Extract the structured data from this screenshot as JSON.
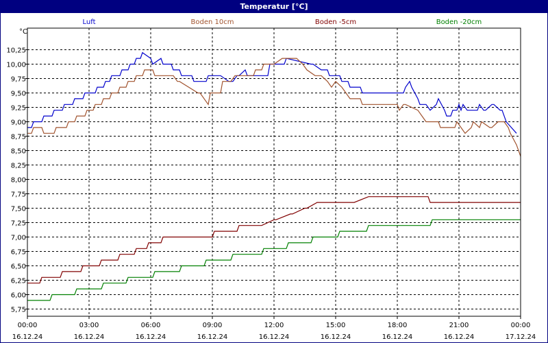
{
  "window_title": "Temperatur [°C]",
  "chart_data": {
    "type": "line",
    "title": "Temperatur [°C]",
    "ylabel": "°C",
    "ylim": [
      5.625,
      10.625
    ],
    "yticks": [
      "5,75",
      "6,00",
      "6,25",
      "6,50",
      "6,75",
      "7,00",
      "7,25",
      "7,50",
      "7,75",
      "8,00",
      "8,25",
      "8,50",
      "8,75",
      "9,00",
      "9,25",
      "9,50",
      "9,75",
      "10,00",
      "10,25"
    ],
    "ytick_values": [
      5.75,
      6.0,
      6.25,
      6.5,
      6.75,
      7.0,
      7.25,
      7.5,
      7.75,
      8.0,
      8.25,
      8.5,
      8.75,
      9.0,
      9.25,
      9.5,
      9.75,
      10.0,
      10.25
    ],
    "xlim": [
      0,
      24
    ],
    "xtick_hours": [
      0,
      3,
      6,
      9,
      12,
      15,
      18,
      21,
      24
    ],
    "xtick_times": [
      "00:00",
      "03:00",
      "06:00",
      "09:00",
      "12:00",
      "15:00",
      "18:00",
      "21:00",
      "00:00"
    ],
    "xtick_dates": [
      "16.12.24",
      "16.12.24",
      "16.12.24",
      "16.12.24",
      "16.12.24",
      "16.12.24",
      "16.12.24",
      "16.12.24",
      "17.12.24"
    ],
    "grid": true,
    "legend_position": "top",
    "series": [
      {
        "name": "Luft",
        "color": "#0000cc",
        "x": [
          0,
          0.2,
          0.3,
          0.7,
          0.8,
          1.2,
          1.3,
          1.7,
          1.8,
          2.2,
          2.3,
          2.7,
          2.8,
          3.3,
          3.4,
          3.7,
          3.8,
          4.0,
          4.1,
          4.5,
          4.6,
          4.9,
          5.0,
          5.2,
          5.3,
          5.5,
          5.6,
          6.0,
          6.1,
          6.5,
          6.6,
          7.0,
          7.1,
          7.4,
          7.5,
          8.0,
          8.1,
          8.7,
          8.8,
          9.3,
          9.4,
          9.8,
          10.0,
          10.2,
          10.3,
          10.6,
          10.7,
          11.2,
          11.3,
          11.7,
          11.8,
          12.5,
          12.6,
          13.8,
          13.9,
          14.3,
          14.4,
          14.6,
          14.7,
          15.2,
          15.3,
          15.6,
          15.7,
          16.2,
          16.3,
          16.9,
          17.0,
          18.3,
          18.4,
          18.6,
          18.7,
          19.0,
          19.1,
          19.4,
          19.6,
          19.9,
          20.0,
          20.3,
          20.4,
          20.6,
          20.7,
          20.9,
          21.0,
          21.1,
          21.2,
          21.4,
          21.5,
          21.9,
          22.0,
          22.2,
          22.3,
          22.6,
          22.7,
          23.0,
          23.1,
          23.3,
          23.8
        ],
        "y": [
          8.9,
          8.9,
          9.0,
          9.0,
          9.1,
          9.1,
          9.2,
          9.2,
          9.3,
          9.3,
          9.4,
          9.4,
          9.5,
          9.5,
          9.6,
          9.6,
          9.7,
          9.7,
          9.8,
          9.8,
          9.9,
          9.9,
          10.0,
          10.0,
          10.1,
          10.1,
          10.2,
          10.1,
          10.0,
          10.1,
          10.0,
          10.0,
          9.9,
          9.9,
          9.8,
          9.8,
          9.7,
          9.7,
          9.8,
          9.8,
          9.8,
          9.7,
          9.7,
          9.8,
          9.8,
          9.9,
          9.8,
          9.8,
          9.8,
          9.8,
          10.0,
          10.0,
          10.1,
          10.0,
          10.0,
          9.9,
          9.9,
          9.9,
          9.8,
          9.8,
          9.7,
          9.7,
          9.6,
          9.6,
          9.5,
          9.5,
          9.5,
          9.5,
          9.6,
          9.7,
          9.6,
          9.4,
          9.3,
          9.3,
          9.2,
          9.3,
          9.4,
          9.2,
          9.1,
          9.1,
          9.2,
          9.2,
          9.3,
          9.2,
          9.3,
          9.2,
          9.2,
          9.2,
          9.3,
          9.2,
          9.2,
          9.3,
          9.3,
          9.2,
          9.2,
          9.0,
          8.8
        ]
      },
      {
        "name": "Boden 10cm",
        "color": "#a0522d",
        "x": [
          0,
          0.2,
          0.3,
          0.7,
          0.8,
          1.3,
          1.4,
          1.9,
          2.0,
          2.3,
          2.4,
          2.8,
          2.9,
          3.2,
          3.3,
          3.6,
          3.7,
          4.0,
          4.1,
          4.4,
          4.5,
          4.8,
          4.9,
          5.2,
          5.3,
          5.6,
          5.7,
          6.1,
          6.2,
          7.0,
          7.1,
          7.3,
          7.4,
          8.3,
          8.4,
          8.8,
          8.9,
          9.4,
          9.5,
          9.9,
          10.1,
          10.3,
          10.4,
          11.0,
          11.1,
          11.4,
          11.5,
          11.8,
          12.0,
          12.4,
          12.5,
          13.0,
          13.1,
          13.4,
          13.6,
          14.0,
          14.3,
          14.6,
          14.8,
          15.0,
          15.3,
          15.5,
          15.7,
          16.2,
          16.3,
          17.1,
          17.2,
          18.0,
          18.1,
          18.3,
          18.4,
          19.0,
          19.2,
          19.4,
          19.5,
          20.0,
          20.1,
          20.8,
          20.9,
          21.1,
          21.3,
          21.6,
          21.7,
          22.0,
          22.1,
          22.5,
          22.6,
          22.9,
          23.2,
          23.4,
          23.5,
          23.8,
          24.0
        ],
        "y": [
          8.8,
          8.8,
          8.9,
          8.9,
          8.8,
          8.8,
          8.9,
          8.9,
          9.0,
          9.0,
          9.1,
          9.1,
          9.2,
          9.2,
          9.3,
          9.3,
          9.4,
          9.4,
          9.5,
          9.5,
          9.6,
          9.6,
          9.7,
          9.7,
          9.8,
          9.8,
          9.9,
          9.9,
          9.8,
          9.8,
          9.8,
          9.7,
          9.7,
          9.5,
          9.5,
          9.3,
          9.5,
          9.5,
          9.7,
          9.7,
          9.8,
          9.8,
          9.8,
          9.8,
          9.9,
          9.9,
          10.0,
          10.0,
          10.0,
          10.1,
          10.1,
          10.1,
          10.1,
          10.0,
          9.9,
          9.8,
          9.8,
          9.7,
          9.6,
          9.7,
          9.6,
          9.5,
          9.4,
          9.4,
          9.3,
          9.3,
          9.3,
          9.3,
          9.2,
          9.3,
          9.3,
          9.2,
          9.1,
          9.0,
          9.0,
          9.0,
          8.9,
          8.9,
          9.0,
          8.9,
          8.8,
          8.9,
          9.0,
          8.9,
          9.0,
          8.9,
          8.9,
          9.0,
          9.0,
          8.9,
          8.8,
          8.6,
          8.4
        ]
      },
      {
        "name": "Boden -5cm",
        "color": "#800000",
        "x": [
          0,
          0.6,
          0.7,
          1.6,
          1.7,
          2.6,
          2.7,
          3.5,
          3.6,
          4.4,
          4.5,
          5.2,
          5.3,
          5.8,
          5.9,
          6.5,
          6.6,
          7.2,
          7.3,
          8.0,
          8.1,
          9.0,
          9.1,
          10.2,
          10.3,
          11.3,
          11.4,
          12.0,
          12.1,
          12.8,
          12.9,
          13.5,
          13.6,
          14.1,
          14.2,
          15.8,
          15.9,
          16.6,
          16.7,
          19.5,
          19.6,
          24.0
        ],
        "y": [
          6.2,
          6.2,
          6.3,
          6.3,
          6.4,
          6.4,
          6.5,
          6.5,
          6.6,
          6.6,
          6.7,
          6.7,
          6.8,
          6.8,
          6.9,
          6.9,
          7.0,
          7.0,
          7.0,
          7.0,
          7.0,
          7.0,
          7.1,
          7.1,
          7.2,
          7.2,
          7.2,
          7.3,
          7.3,
          7.4,
          7.4,
          7.5,
          7.5,
          7.6,
          7.6,
          7.6,
          7.6,
          7.7,
          7.7,
          7.7,
          7.6,
          7.6
        ]
      },
      {
        "name": "Boden -20cm",
        "color": "#008000",
        "x": [
          0,
          1.1,
          1.2,
          2.3,
          2.4,
          3.6,
          3.7,
          4.8,
          4.9,
          6.1,
          6.2,
          7.4,
          7.5,
          8.6,
          8.7,
          9.9,
          10.0,
          11.4,
          11.5,
          12.6,
          12.7,
          13.8,
          13.9,
          15.1,
          15.2,
          16.5,
          16.6,
          18.1,
          18.2,
          19.6,
          19.7,
          24.0
        ],
        "y": [
          5.9,
          5.9,
          6.0,
          6.0,
          6.1,
          6.1,
          6.2,
          6.2,
          6.3,
          6.3,
          6.4,
          6.4,
          6.5,
          6.5,
          6.6,
          6.6,
          6.7,
          6.7,
          6.8,
          6.8,
          6.9,
          6.9,
          7.0,
          7.0,
          7.1,
          7.1,
          7.2,
          7.2,
          7.2,
          7.2,
          7.3,
          7.3
        ]
      }
    ]
  }
}
